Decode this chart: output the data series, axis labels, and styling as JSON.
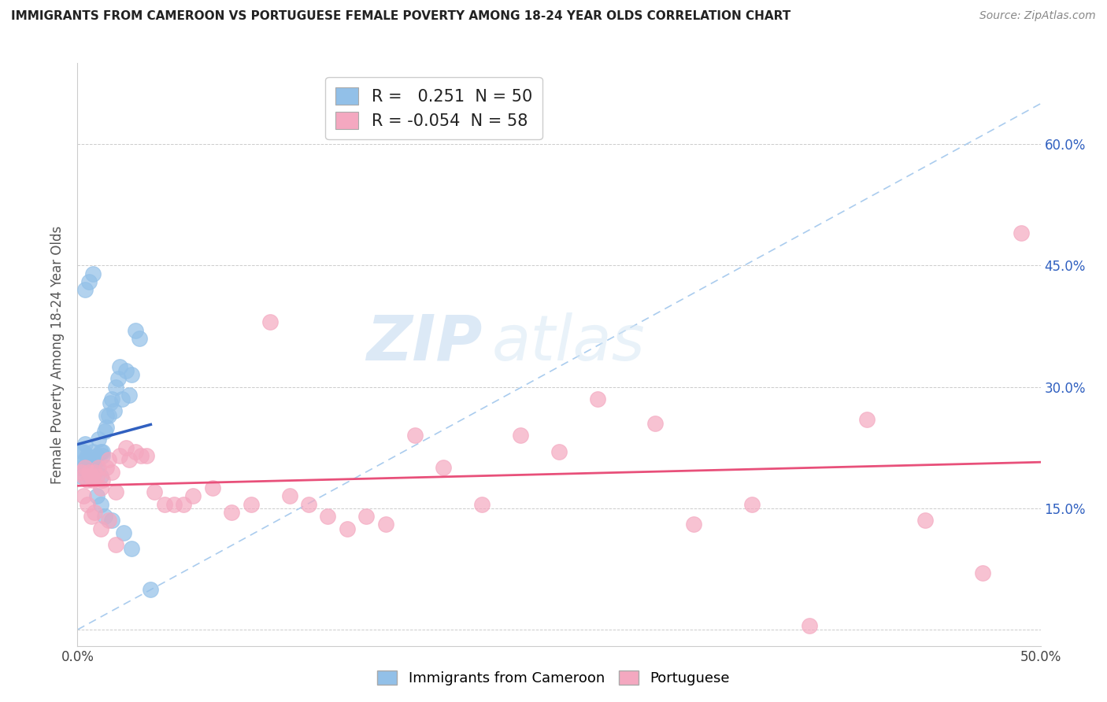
{
  "title": "IMMIGRANTS FROM CAMEROON VS PORTUGUESE FEMALE POVERTY AMONG 18-24 YEAR OLDS CORRELATION CHART",
  "source": "Source: ZipAtlas.com",
  "ylabel": "Female Poverty Among 18-24 Year Olds",
  "xlim": [
    0.0,
    0.5
  ],
  "ylim": [
    -0.02,
    0.7
  ],
  "yticks": [
    0.0,
    0.15,
    0.3,
    0.45,
    0.6
  ],
  "ytick_labels": [
    "",
    "15.0%",
    "30.0%",
    "45.0%",
    "60.0%"
  ],
  "xticks": [
    0.0,
    0.1,
    0.2,
    0.3,
    0.4,
    0.5
  ],
  "xtick_labels": [
    "0.0%",
    "",
    "",
    "",
    "",
    "50.0%"
  ],
  "legend_label_1": "Immigrants from Cameroon",
  "legend_label_2": "Portuguese",
  "r1": 0.251,
  "n1": 50,
  "r2": -0.054,
  "n2": 58,
  "color_blue": "#92C0E8",
  "color_pink": "#F4A8C0",
  "color_blue_line": "#3060C0",
  "color_pink_line": "#E8507A",
  "color_dashed": "#AACCEE",
  "watermark_zip": "ZIP",
  "watermark_atlas": "atlas",
  "blue_scatter_x": [
    0.001,
    0.002,
    0.002,
    0.003,
    0.003,
    0.004,
    0.004,
    0.005,
    0.005,
    0.006,
    0.006,
    0.007,
    0.007,
    0.008,
    0.008,
    0.009,
    0.009,
    0.01,
    0.01,
    0.011,
    0.012,
    0.012,
    0.013,
    0.013,
    0.014,
    0.015,
    0.015,
    0.016,
    0.017,
    0.018,
    0.019,
    0.02,
    0.021,
    0.022,
    0.023,
    0.025,
    0.027,
    0.028,
    0.03,
    0.032,
    0.004,
    0.006,
    0.008,
    0.01,
    0.012,
    0.014,
    0.018,
    0.024,
    0.028,
    0.038
  ],
  "blue_scatter_y": [
    0.2,
    0.22,
    0.19,
    0.22,
    0.2,
    0.21,
    0.23,
    0.195,
    0.215,
    0.2,
    0.19,
    0.205,
    0.21,
    0.195,
    0.22,
    0.205,
    0.195,
    0.215,
    0.2,
    0.235,
    0.22,
    0.19,
    0.215,
    0.22,
    0.245,
    0.25,
    0.265,
    0.265,
    0.28,
    0.285,
    0.27,
    0.3,
    0.31,
    0.325,
    0.285,
    0.32,
    0.29,
    0.315,
    0.37,
    0.36,
    0.42,
    0.43,
    0.44,
    0.165,
    0.155,
    0.14,
    0.135,
    0.12,
    0.1,
    0.05
  ],
  "pink_scatter_x": [
    0.002,
    0.003,
    0.004,
    0.005,
    0.006,
    0.007,
    0.008,
    0.009,
    0.01,
    0.011,
    0.012,
    0.013,
    0.015,
    0.016,
    0.018,
    0.02,
    0.022,
    0.025,
    0.027,
    0.03,
    0.033,
    0.036,
    0.04,
    0.045,
    0.05,
    0.055,
    0.06,
    0.07,
    0.08,
    0.09,
    0.1,
    0.11,
    0.12,
    0.13,
    0.14,
    0.15,
    0.16,
    0.175,
    0.19,
    0.21,
    0.23,
    0.25,
    0.27,
    0.3,
    0.32,
    0.35,
    0.38,
    0.41,
    0.44,
    0.47,
    0.003,
    0.005,
    0.007,
    0.009,
    0.012,
    0.016,
    0.02,
    0.49
  ],
  "pink_scatter_y": [
    0.195,
    0.19,
    0.2,
    0.185,
    0.195,
    0.19,
    0.185,
    0.195,
    0.19,
    0.2,
    0.175,
    0.185,
    0.2,
    0.21,
    0.195,
    0.17,
    0.215,
    0.225,
    0.21,
    0.22,
    0.215,
    0.215,
    0.17,
    0.155,
    0.155,
    0.155,
    0.165,
    0.175,
    0.145,
    0.155,
    0.38,
    0.165,
    0.155,
    0.14,
    0.125,
    0.14,
    0.13,
    0.24,
    0.2,
    0.155,
    0.24,
    0.22,
    0.285,
    0.255,
    0.13,
    0.155,
    0.005,
    0.26,
    0.135,
    0.07,
    0.165,
    0.155,
    0.14,
    0.145,
    0.125,
    0.135,
    0.105,
    0.49
  ]
}
